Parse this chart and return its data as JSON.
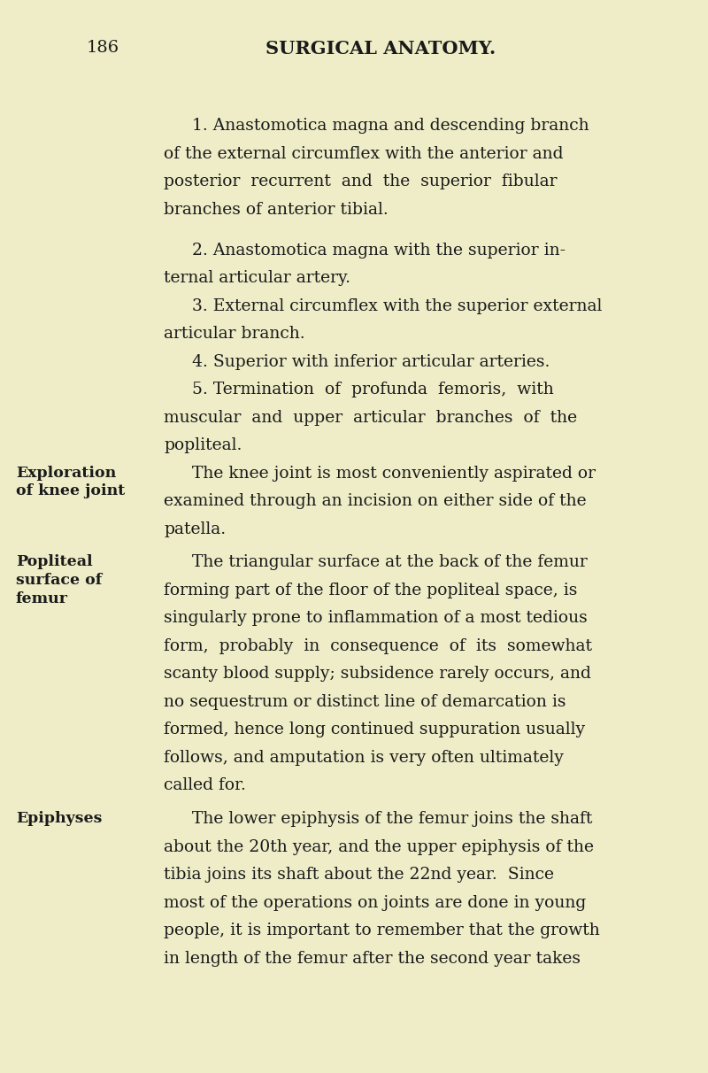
{
  "background_color": "#eeedc8",
  "page_number": "186",
  "header": "SURGICAL ANATOMY.",
  "text_color": "#1a1a1a",
  "font_size_body": 13.5,
  "font_size_header": 15,
  "font_size_page_num": 14,
  "font_size_margin": 12.5,
  "lines": [
    {
      "type": "header_line",
      "page_num": "186",
      "header": "SURGICAL ANATOMY."
    },
    {
      "type": "gap",
      "size": 1.8
    },
    {
      "type": "body",
      "indent": true,
      "text": "1. Anastomotica magna and descending branch"
    },
    {
      "type": "body",
      "indent": false,
      "text": "of the external circumflex with the anterior and"
    },
    {
      "type": "body",
      "indent": false,
      "text": "posterior  recurrent  and  the  superior  fibular"
    },
    {
      "type": "body",
      "indent": false,
      "text": "branches of anterior tibial."
    },
    {
      "type": "gap",
      "size": 0.9
    },
    {
      "type": "body",
      "indent": true,
      "text": "2. Anastomotica magna with the superior in-"
    },
    {
      "type": "body",
      "indent": false,
      "text": "ternal articular artery."
    },
    {
      "type": "body",
      "indent": true,
      "text": "3. External circumflex with the superior external"
    },
    {
      "type": "body",
      "indent": false,
      "text": "articular branch."
    },
    {
      "type": "body",
      "indent": true,
      "text": "4. Superior with inferior articular arteries."
    },
    {
      "type": "body",
      "indent": true,
      "text": "5. Termination  of  profunda  femoris,  with"
    },
    {
      "type": "body",
      "indent": false,
      "text": "muscular  and  upper  articular  branches  of  the"
    },
    {
      "type": "body",
      "indent": false,
      "text": "popliteal."
    },
    {
      "type": "margin_body",
      "margin_label": "Exploration\nof knee joint",
      "indent": true,
      "text": "The knee joint is most conveniently aspirated or"
    },
    {
      "type": "body",
      "indent": false,
      "text": "examined through an incision on either side of the"
    },
    {
      "type": "body",
      "indent": false,
      "text": "patella."
    },
    {
      "type": "gap",
      "size": 0.4
    },
    {
      "type": "margin_body",
      "margin_label": "Popliteal\nsurface of\nfemur",
      "indent": true,
      "text": "The triangular surface at the back of the femur"
    },
    {
      "type": "body",
      "indent": false,
      "text": "forming part of the floor of the popliteal space, is"
    },
    {
      "type": "body",
      "indent": false,
      "text": "singularly prone to inflammation of a most tedious"
    },
    {
      "type": "body",
      "indent": false,
      "text": "form,  probably  in  consequence  of  its  somewhat"
    },
    {
      "type": "body",
      "indent": false,
      "text": "scanty blood supply; subsidence rarely occurs, and"
    },
    {
      "type": "body",
      "indent": false,
      "text": "no sequestrum or distinct line of demarcation is"
    },
    {
      "type": "body",
      "indent": false,
      "text": "formed, hence long continued suppuration usually"
    },
    {
      "type": "body",
      "indent": false,
      "text": "follows, and amputation is very often ultimately"
    },
    {
      "type": "body",
      "indent": false,
      "text": "called for."
    },
    {
      "type": "gap",
      "size": 0.4
    },
    {
      "type": "margin_body",
      "margin_label": "Epiphyses",
      "indent": true,
      "text": "The lower epiphysis of the femur joins the shaft"
    },
    {
      "type": "body",
      "indent": false,
      "text": "about the 20th year, and the upper epiphysis of the"
    },
    {
      "type": "body",
      "indent": false,
      "text": "tibia joins its shaft about the 22nd year.  Since"
    },
    {
      "type": "body",
      "indent": false,
      "text": "most of the operations on joints are done in young"
    },
    {
      "type": "body",
      "indent": false,
      "text": "people, it is important to remember that the growth"
    },
    {
      "type": "body",
      "indent": false,
      "text": "in length of the femur after the second year takes"
    }
  ]
}
